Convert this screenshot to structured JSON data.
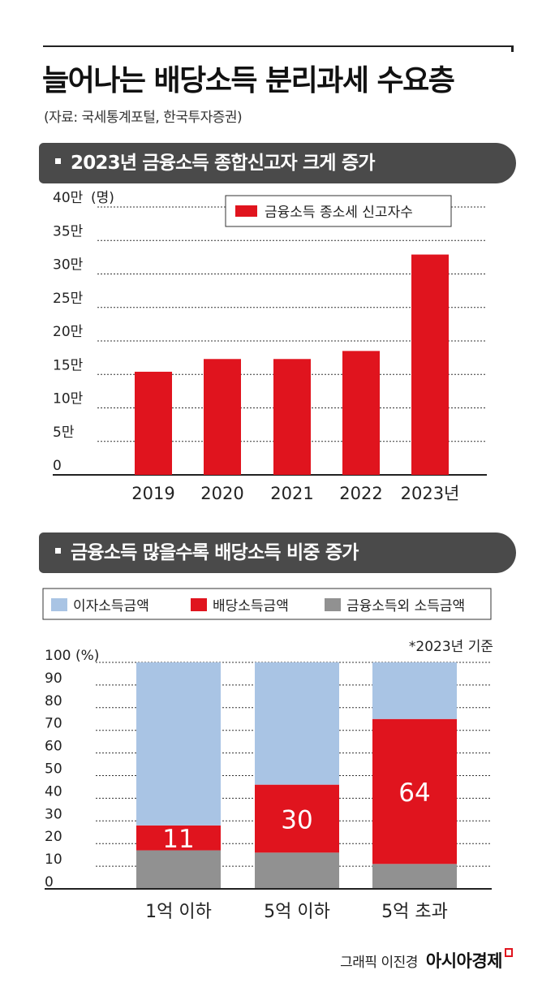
{
  "header": {
    "title": "늘어나는 배당소득 분리과세 수요층",
    "source": "(자료: 국세통계포털, 한국투자증권)"
  },
  "section1": {
    "heading": "2023년 금융소득 종합신고자 크게 증가"
  },
  "section2": {
    "heading": "금융소득 많을수록 배당소득 비중 증가"
  },
  "footer": {
    "credit": "그래픽 이진경",
    "brand": "아시아경제"
  },
  "colors": {
    "red": "#e0141e",
    "blue": "#a9c4e4",
    "gray": "#919191",
    "bar_bg": "#4a4a4a"
  },
  "chart_data": [
    {
      "type": "bar",
      "categories": [
        "2019",
        "2020",
        "2021",
        "2022",
        "2023년"
      ],
      "series": [
        {
          "name": "금융소득 종소세 신고자수",
          "values": [
            15.4,
            17.3,
            17.3,
            18.5,
            32.9
          ]
        }
      ],
      "ylim": [
        0,
        40
      ],
      "ytick_values": [
        0,
        5,
        10,
        15,
        20,
        25,
        30,
        35,
        40
      ],
      "ytick_labels": [
        "0",
        "5만",
        "10만",
        "15만",
        "20만",
        "25만",
        "30만",
        "35만",
        "40만"
      ],
      "ylabel": "(명)",
      "grid": true,
      "legend": "top-right"
    },
    {
      "type": "bar",
      "stacked": true,
      "categories": [
        "1억 이하",
        "5억 이하",
        "5억 초과"
      ],
      "series": [
        {
          "name": "금융소득외 소득금액",
          "values": [
            17,
            16,
            11
          ]
        },
        {
          "name": "배당소득금액",
          "values": [
            11,
            30,
            64
          ]
        },
        {
          "name": "이자소득금액",
          "values": [
            72,
            54,
            25
          ]
        }
      ],
      "data_labels": [
        "11",
        "30",
        "64"
      ],
      "ylim": [
        0,
        100
      ],
      "ytick_values": [
        0,
        10,
        20,
        30,
        40,
        50,
        60,
        70,
        80,
        90,
        100
      ],
      "ytick_labels": [
        "0",
        "10",
        "20",
        "30",
        "40",
        "50",
        "60",
        "70",
        "80",
        "90",
        "100"
      ],
      "ylabel": "(%)",
      "note": "*2023년 기준",
      "grid": true,
      "legend": "top"
    }
  ]
}
